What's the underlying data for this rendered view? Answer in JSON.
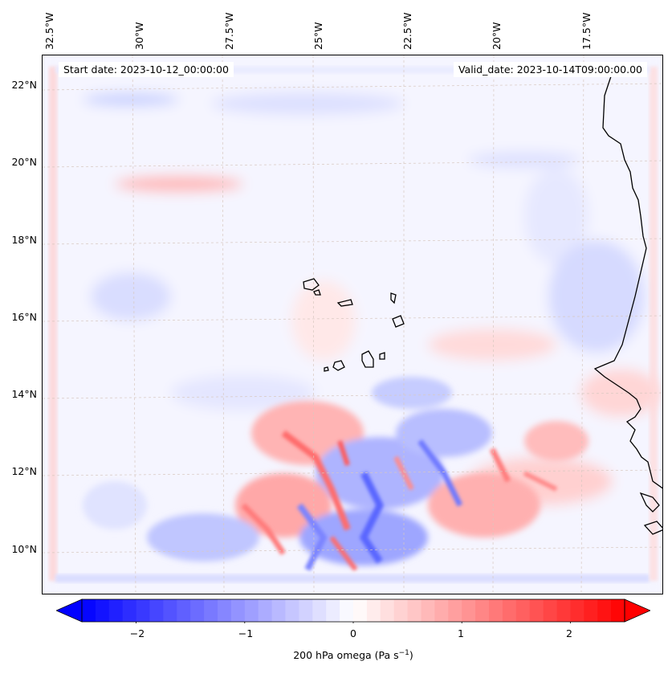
{
  "header": {
    "start_date": "Start date: 2023-10-12_00:00:00",
    "valid_date": "Valid_date: 2023-10-14T09:00:00.00"
  },
  "map": {
    "field": "200 hPa omega",
    "lon_labels": [
      "32.5°W",
      "30°W",
      "27.5°W",
      "25°W",
      "22.5°W",
      "20°W",
      "17.5°W"
    ],
    "lat_labels": [
      "22°N",
      "20°N",
      "18°N",
      "16°N",
      "14°N",
      "12°N",
      "10°N"
    ],
    "colors": {
      "negative": "#0000ff",
      "zero": "#ffffff",
      "positive": "#ff0000",
      "coastline": "#000000",
      "grid": "#d8c8c0"
    }
  },
  "colorbar": {
    "label_main": "200 hPa omega (Pa s",
    "label_exp": "−1",
    "label_close": ")",
    "ticks": [
      "−2",
      "−1",
      "0",
      "1",
      "2"
    ],
    "tick_values": [
      -2,
      -1,
      0,
      1,
      2
    ],
    "range": [
      -2.5,
      2.5
    ],
    "extend": "both"
  }
}
